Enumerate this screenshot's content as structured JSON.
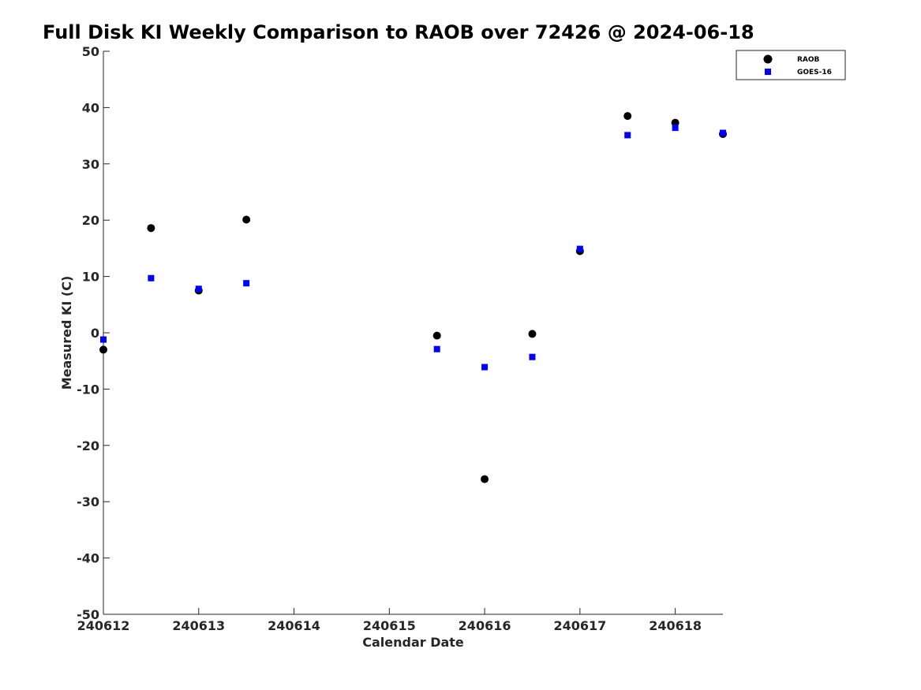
{
  "chart_data": {
    "type": "scatter",
    "title": "Full Disk KI Weekly Comparison to RAOB over 72426 @ 2024-06-18",
    "xlabel": "Calendar Date",
    "ylabel": "Measured KI (C)",
    "x_ticks": [
      "240612",
      "240613",
      "240614",
      "240615",
      "240616",
      "240617",
      "240618"
    ],
    "xlim": [
      "2024-06-12 00:00",
      "2024-06-18 12:00"
    ],
    "ylim": [
      -50,
      50
    ],
    "y_ticks": [
      50,
      40,
      30,
      20,
      10,
      0,
      -10,
      -20,
      -30,
      -40,
      -50
    ],
    "grid": false,
    "legend_position": "top-right",
    "series": [
      {
        "name": "RAOB",
        "color": "#000000",
        "marker": "circle",
        "points": [
          {
            "x": "2024-06-12 00:00",
            "y": -3.0
          },
          {
            "x": "2024-06-12 12:00",
            "y": 18.6
          },
          {
            "x": "2024-06-13 00:00",
            "y": 7.5
          },
          {
            "x": "2024-06-13 12:00",
            "y": 20.1
          },
          {
            "x": "2024-06-15 12:00",
            "y": -0.5
          },
          {
            "x": "2024-06-16 00:00",
            "y": -26.0
          },
          {
            "x": "2024-06-16 12:00",
            "y": -0.2
          },
          {
            "x": "2024-06-17 00:00",
            "y": 14.5
          },
          {
            "x": "2024-06-17 12:00",
            "y": 38.5
          },
          {
            "x": "2024-06-18 00:00",
            "y": 37.3
          },
          {
            "x": "2024-06-18 12:00",
            "y": 35.3
          }
        ]
      },
      {
        "name": "GOES-16",
        "color": "#0000ff",
        "marker": "square",
        "points": [
          {
            "x": "2024-06-12 00:00",
            "y": -1.2
          },
          {
            "x": "2024-06-12 12:00",
            "y": 9.7
          },
          {
            "x": "2024-06-13 00:00",
            "y": 7.8
          },
          {
            "x": "2024-06-13 12:00",
            "y": 8.8
          },
          {
            "x": "2024-06-15 12:00",
            "y": -2.9
          },
          {
            "x": "2024-06-16 00:00",
            "y": -6.1
          },
          {
            "x": "2024-06-16 12:00",
            "y": -4.3
          },
          {
            "x": "2024-06-17 00:00",
            "y": 14.9
          },
          {
            "x": "2024-06-17 12:00",
            "y": 35.1
          },
          {
            "x": "2024-06-18 00:00",
            "y": 36.4
          },
          {
            "x": "2024-06-18 12:00",
            "y": 35.5
          }
        ]
      }
    ]
  }
}
